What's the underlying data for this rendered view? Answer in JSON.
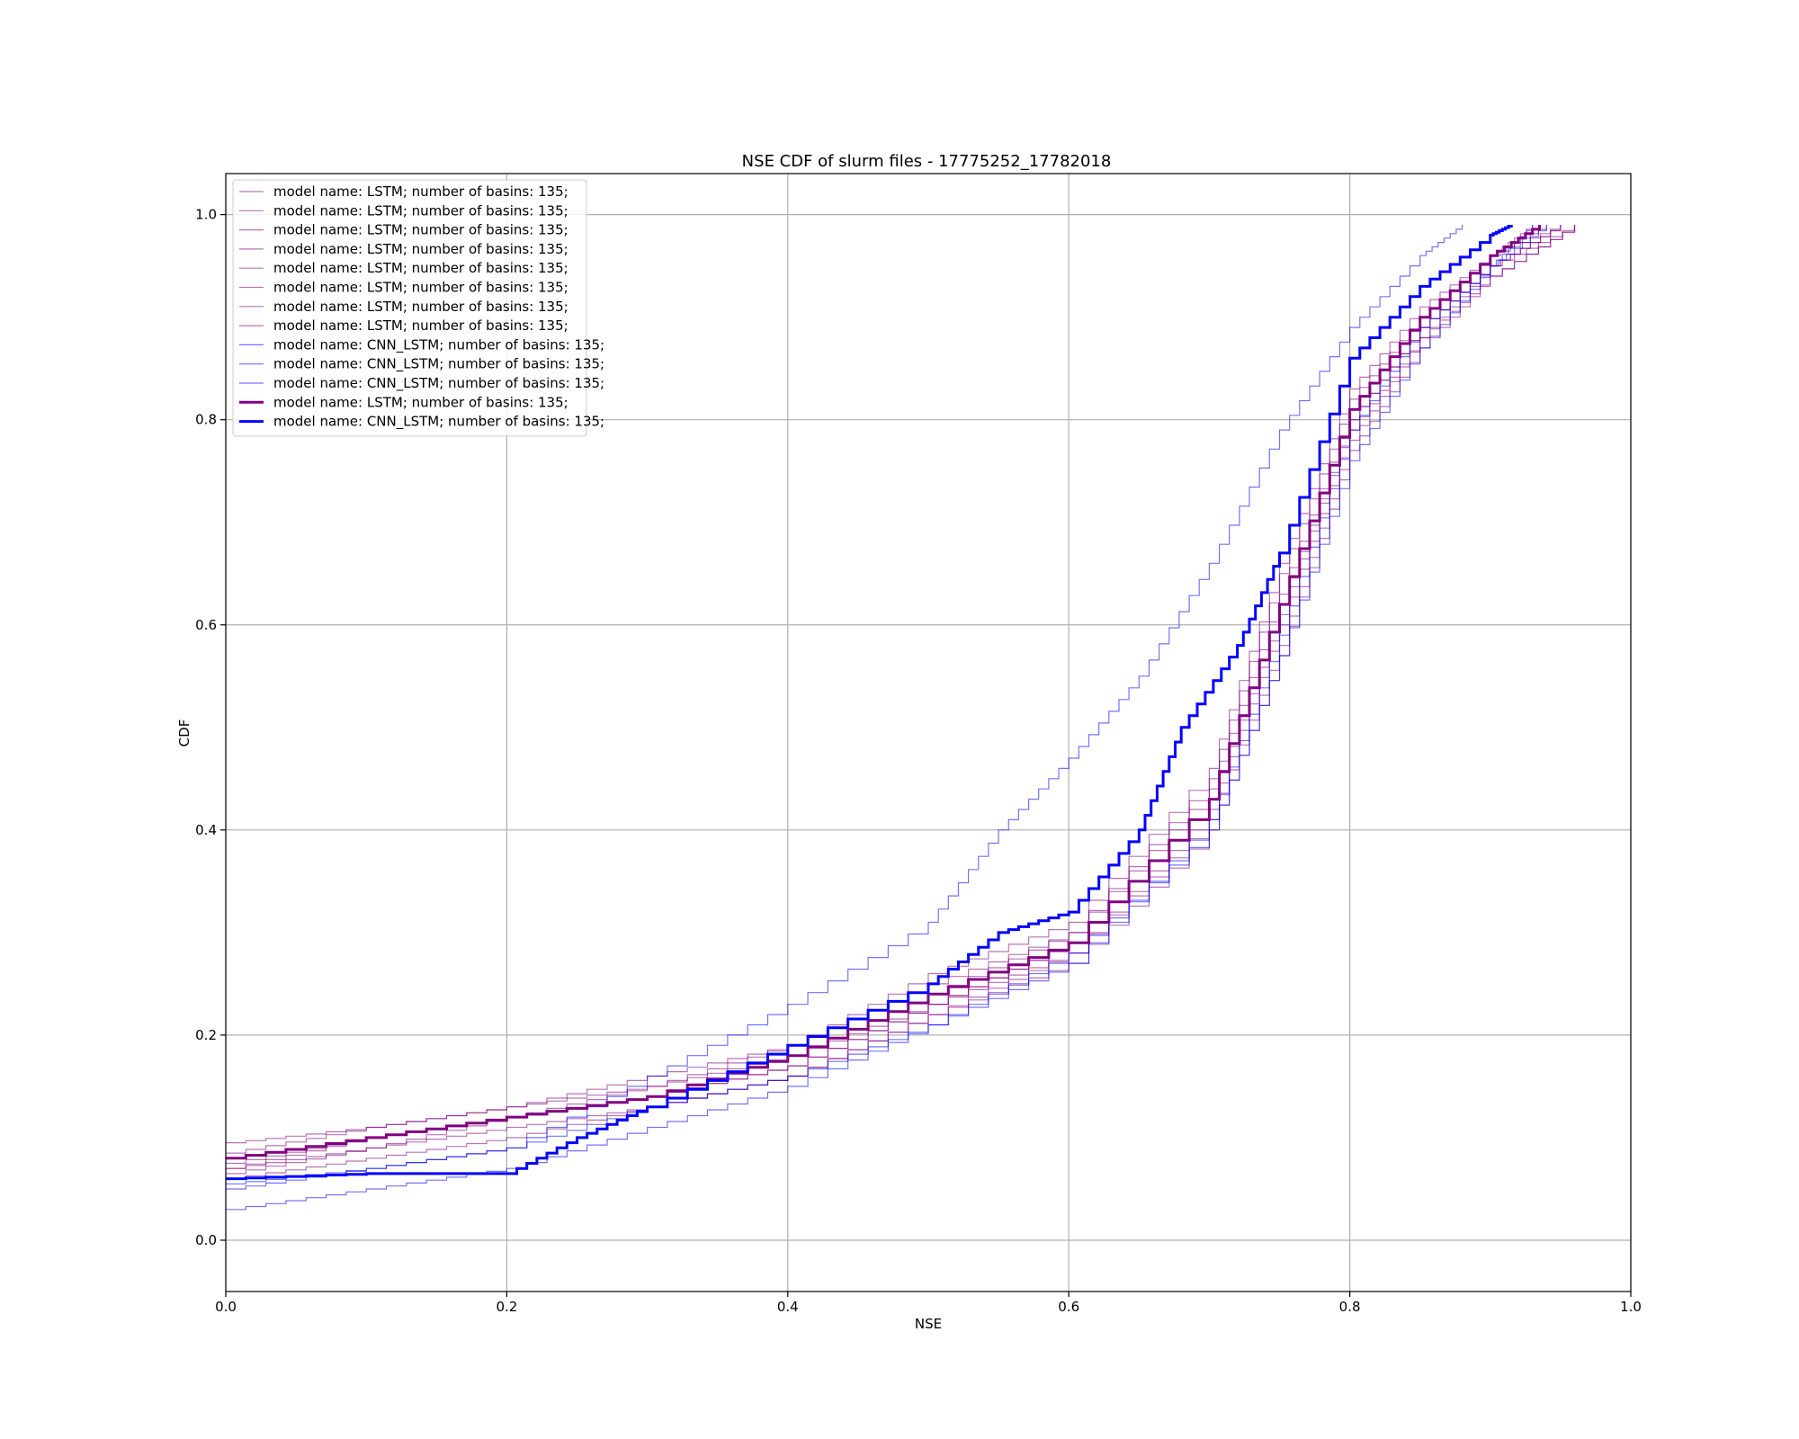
{
  "chart_data": {
    "type": "line",
    "title": "NSE CDF of slurm files - 17775252_17782018",
    "xlabel": "NSE",
    "ylabel": "CDF",
    "xlim": [
      0.0,
      1.0
    ],
    "ylim": [
      -0.05,
      1.04
    ],
    "xticks": [
      "0.0",
      "0.2",
      "0.4",
      "0.6",
      "0.8",
      "1.0"
    ],
    "xtick_values": [
      0.0,
      0.2,
      0.4,
      0.6,
      0.8,
      1.0
    ],
    "yticks": [
      "0.0",
      "0.2",
      "0.4",
      "0.6",
      "0.8",
      "1.0"
    ],
    "ytick_values": [
      0.0,
      0.2,
      0.4,
      0.6,
      0.8,
      1.0
    ],
    "grid": true,
    "legend_position": "top-left",
    "colors": {
      "lstm": "#800080",
      "cnn_lstm": "#0000ff",
      "axis": "#000000",
      "grid": "#b0b0b0"
    },
    "series": [
      {
        "name": "model name: LSTM; number of basins: 135;",
        "color": "#800080",
        "emphasis": "thin",
        "points": [
          [
            0.0,
            0.07
          ],
          [
            0.1,
            0.09
          ],
          [
            0.2,
            0.12
          ],
          [
            0.3,
            0.15
          ],
          [
            0.4,
            0.18
          ],
          [
            0.5,
            0.24
          ],
          [
            0.6,
            0.3
          ],
          [
            0.7,
            0.44
          ],
          [
            0.75,
            0.63
          ],
          [
            0.8,
            0.81
          ],
          [
            0.85,
            0.9
          ],
          [
            0.9,
            0.96
          ],
          [
            0.94,
            0.99
          ]
        ]
      },
      {
        "name": "model name: LSTM; number of basins: 135;",
        "color": "#800080",
        "emphasis": "thin",
        "points": [
          [
            0.0,
            0.095
          ],
          [
            0.1,
            0.11
          ],
          [
            0.2,
            0.13
          ],
          [
            0.3,
            0.16
          ],
          [
            0.4,
            0.19
          ],
          [
            0.5,
            0.26
          ],
          [
            0.6,
            0.31
          ],
          [
            0.7,
            0.46
          ],
          [
            0.75,
            0.66
          ],
          [
            0.8,
            0.83
          ],
          [
            0.85,
            0.91
          ],
          [
            0.9,
            0.96
          ],
          [
            0.95,
            0.99
          ]
        ]
      },
      {
        "name": "model name: LSTM; number of basins: 135;",
        "color": "#800080",
        "emphasis": "thin",
        "points": [
          [
            0.0,
            0.06
          ],
          [
            0.1,
            0.08
          ],
          [
            0.2,
            0.1
          ],
          [
            0.3,
            0.13
          ],
          [
            0.4,
            0.16
          ],
          [
            0.5,
            0.22
          ],
          [
            0.6,
            0.28
          ],
          [
            0.7,
            0.42
          ],
          [
            0.75,
            0.6
          ],
          [
            0.8,
            0.79
          ],
          [
            0.85,
            0.88
          ],
          [
            0.9,
            0.95
          ],
          [
            0.96,
            0.99
          ]
        ]
      },
      {
        "name": "model name: LSTM; number of basins: 135;",
        "color": "#800080",
        "emphasis": "thin",
        "points": [
          [
            0.0,
            0.08
          ],
          [
            0.1,
            0.1
          ],
          [
            0.2,
            0.12
          ],
          [
            0.3,
            0.14
          ],
          [
            0.4,
            0.17
          ],
          [
            0.5,
            0.23
          ],
          [
            0.6,
            0.29
          ],
          [
            0.7,
            0.43
          ],
          [
            0.75,
            0.61
          ],
          [
            0.8,
            0.8
          ],
          [
            0.85,
            0.89
          ],
          [
            0.9,
            0.95
          ],
          [
            0.95,
            0.99
          ]
        ]
      },
      {
        "name": "model name: LSTM; number of basins: 135;",
        "color": "#800080",
        "emphasis": "thin",
        "points": [
          [
            0.0,
            0.07
          ],
          [
            0.1,
            0.1
          ],
          [
            0.2,
            0.12
          ],
          [
            0.3,
            0.14
          ],
          [
            0.4,
            0.18
          ],
          [
            0.5,
            0.23
          ],
          [
            0.6,
            0.28
          ],
          [
            0.7,
            0.41
          ],
          [
            0.75,
            0.58
          ],
          [
            0.8,
            0.78
          ],
          [
            0.85,
            0.88
          ],
          [
            0.9,
            0.94
          ],
          [
            0.96,
            0.99
          ]
        ]
      },
      {
        "name": "model name: LSTM; number of basins: 135;",
        "color": "#800080",
        "emphasis": "thin",
        "points": [
          [
            0.0,
            0.085
          ],
          [
            0.1,
            0.11
          ],
          [
            0.2,
            0.13
          ],
          [
            0.3,
            0.15
          ],
          [
            0.4,
            0.19
          ],
          [
            0.5,
            0.25
          ],
          [
            0.6,
            0.3
          ],
          [
            0.7,
            0.45
          ],
          [
            0.75,
            0.65
          ],
          [
            0.8,
            0.82
          ],
          [
            0.85,
            0.9
          ],
          [
            0.9,
            0.96
          ],
          [
            0.93,
            0.99
          ]
        ]
      },
      {
        "name": "model name: LSTM; number of basins: 135;",
        "color": "#800080",
        "emphasis": "thin",
        "points": [
          [
            0.0,
            0.075
          ],
          [
            0.1,
            0.1
          ],
          [
            0.2,
            0.12
          ],
          [
            0.3,
            0.14
          ],
          [
            0.4,
            0.17
          ],
          [
            0.5,
            0.23
          ],
          [
            0.6,
            0.29
          ],
          [
            0.7,
            0.43
          ],
          [
            0.75,
            0.62
          ],
          [
            0.8,
            0.8
          ],
          [
            0.85,
            0.89
          ],
          [
            0.9,
            0.95
          ],
          [
            0.95,
            0.99
          ]
        ]
      },
      {
        "name": "model name: LSTM; number of basins: 135;",
        "color": "#800080",
        "emphasis": "thin",
        "points": [
          [
            0.0,
            0.065
          ],
          [
            0.1,
            0.09
          ],
          [
            0.2,
            0.11
          ],
          [
            0.3,
            0.13
          ],
          [
            0.4,
            0.16
          ],
          [
            0.5,
            0.22
          ],
          [
            0.6,
            0.27
          ],
          [
            0.7,
            0.4
          ],
          [
            0.75,
            0.57
          ],
          [
            0.8,
            0.77
          ],
          [
            0.85,
            0.87
          ],
          [
            0.9,
            0.94
          ],
          [
            0.96,
            0.99
          ]
        ]
      },
      {
        "name": "model name: CNN_LSTM; number of basins: 135;",
        "color": "#0000ff",
        "emphasis": "thin",
        "points": [
          [
            0.0,
            0.05
          ],
          [
            0.1,
            0.07
          ],
          [
            0.2,
            0.09
          ],
          [
            0.3,
            0.16
          ],
          [
            0.4,
            0.23
          ],
          [
            0.5,
            0.31
          ],
          [
            0.55,
            0.4
          ],
          [
            0.6,
            0.47
          ],
          [
            0.65,
            0.55
          ],
          [
            0.7,
            0.66
          ],
          [
            0.75,
            0.79
          ],
          [
            0.8,
            0.89
          ],
          [
            0.85,
            0.96
          ],
          [
            0.88,
            0.99
          ]
        ]
      },
      {
        "name": "model name: CNN_LSTM; number of basins: 135;",
        "color": "#0000ff",
        "emphasis": "thin",
        "points": [
          [
            0.0,
            0.03
          ],
          [
            0.1,
            0.05
          ],
          [
            0.2,
            0.07
          ],
          [
            0.3,
            0.11
          ],
          [
            0.4,
            0.15
          ],
          [
            0.5,
            0.21
          ],
          [
            0.6,
            0.28
          ],
          [
            0.7,
            0.4
          ],
          [
            0.75,
            0.57
          ],
          [
            0.8,
            0.76
          ],
          [
            0.85,
            0.87
          ],
          [
            0.9,
            0.95
          ],
          [
            0.93,
            0.99
          ]
        ]
      },
      {
        "name": "model name: CNN_LSTM; number of basins: 135;",
        "color": "#0000ff",
        "emphasis": "thin",
        "points": [
          [
            0.0,
            0.055
          ],
          [
            0.1,
            0.07
          ],
          [
            0.2,
            0.09
          ],
          [
            0.3,
            0.13
          ],
          [
            0.4,
            0.16
          ],
          [
            0.5,
            0.21
          ],
          [
            0.6,
            0.27
          ],
          [
            0.7,
            0.41
          ],
          [
            0.75,
            0.59
          ],
          [
            0.8,
            0.79
          ],
          [
            0.85,
            0.89
          ],
          [
            0.9,
            0.95
          ],
          [
            0.94,
            0.99
          ]
        ]
      },
      {
        "name": "model name: LSTM; number of basins: 135;",
        "color": "#800080",
        "emphasis": "thick",
        "points": [
          [
            0.0,
            0.08
          ],
          [
            0.1,
            0.1
          ],
          [
            0.2,
            0.12
          ],
          [
            0.3,
            0.14
          ],
          [
            0.4,
            0.18
          ],
          [
            0.5,
            0.24
          ],
          [
            0.6,
            0.29
          ],
          [
            0.7,
            0.43
          ],
          [
            0.75,
            0.62
          ],
          [
            0.8,
            0.81
          ],
          [
            0.85,
            0.9
          ],
          [
            0.9,
            0.96
          ],
          [
            0.935,
            0.99
          ]
        ]
      },
      {
        "name": "model name: CNN_LSTM; number of basins: 135;",
        "color": "#0000ff",
        "emphasis": "thick",
        "points": [
          [
            0.0,
            0.06
          ],
          [
            0.1,
            0.065
          ],
          [
            0.2,
            0.065
          ],
          [
            0.25,
            0.1
          ],
          [
            0.3,
            0.13
          ],
          [
            0.4,
            0.19
          ],
          [
            0.5,
            0.25
          ],
          [
            0.55,
            0.3
          ],
          [
            0.6,
            0.32
          ],
          [
            0.65,
            0.4
          ],
          [
            0.68,
            0.5
          ],
          [
            0.72,
            0.58
          ],
          [
            0.75,
            0.67
          ],
          [
            0.8,
            0.86
          ],
          [
            0.85,
            0.93
          ],
          [
            0.9,
            0.98
          ],
          [
            0.915,
            0.99
          ]
        ]
      }
    ]
  }
}
